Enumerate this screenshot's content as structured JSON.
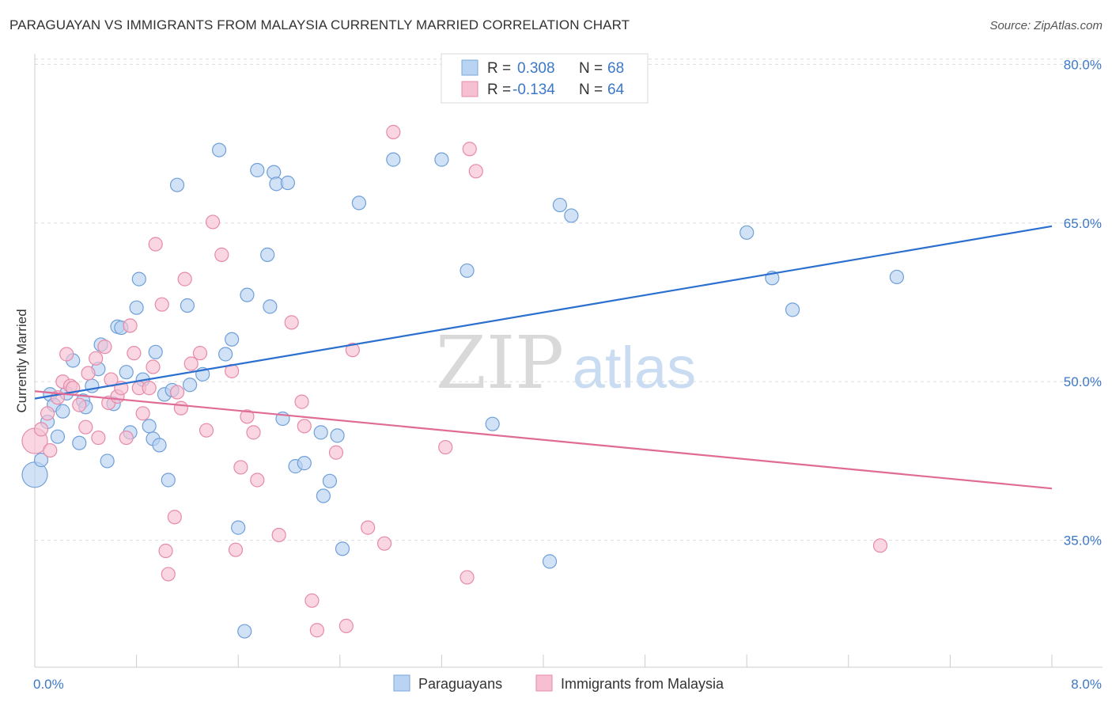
{
  "title": "PARAGUAYAN VS IMMIGRANTS FROM MALAYSIA CURRENTLY MARRIED CORRELATION CHART",
  "source": "Source: ZipAtlas.com",
  "watermark": {
    "zip": "ZIP",
    "atlas": "atlas"
  },
  "colors": {
    "blue": "#3b78c8",
    "blue_fill": "#b9d3f2",
    "blue_line": "#2b6fcf",
    "pink_fill": "#f6c0d2",
    "pink_stroke": "#e68aa9",
    "pink_line": "#e06c96"
  },
  "legend": {
    "rows": [
      {
        "r_label": "R =",
        "r_value": "0.308",
        "n_label": "N =",
        "n_value": "68"
      },
      {
        "r_label": "R =",
        "r_value": "-0.134",
        "n_label": "N =",
        "n_value": "64"
      }
    ]
  },
  "chart_data": {
    "type": "scatter",
    "title": "PARAGUAYAN VS IMMIGRANTS FROM MALAYSIA CURRENTLY MARRIED CORRELATION CHART",
    "xlabel": "",
    "ylabel": "Currently Married",
    "xlim": [
      0,
      8
    ],
    "ylim": [
      23,
      81
    ],
    "x_tick_labels": [
      {
        "value": 0,
        "label": "0.0%"
      },
      {
        "value": 8,
        "label": "8.0%"
      }
    ],
    "y_ticks": [
      {
        "value": 35,
        "label": "35.0%"
      },
      {
        "value": 50,
        "label": "50.0%"
      },
      {
        "value": 65,
        "label": "65.0%"
      },
      {
        "value": 80,
        "label": "80.0%"
      }
    ],
    "grid": true,
    "legend_position": "top-center",
    "series": [
      {
        "name": "Paraguayans",
        "color": "#b9d3f2",
        "trend": {
          "x": [
            0,
            8
          ],
          "y": [
            48.4,
            64.7
          ]
        },
        "points": [
          [
            0.0,
            41.2,
            2
          ],
          [
            0.05,
            42.6,
            1
          ],
          [
            0.1,
            46.2,
            1
          ],
          [
            0.12,
            48.8,
            1
          ],
          [
            0.15,
            47.8,
            1
          ],
          [
            0.18,
            44.8,
            1
          ],
          [
            0.22,
            47.2,
            1
          ],
          [
            0.25,
            48.9,
            1
          ],
          [
            0.3,
            52.0,
            1
          ],
          [
            0.35,
            44.2,
            1
          ],
          [
            0.38,
            48.2,
            1
          ],
          [
            0.4,
            47.6,
            1
          ],
          [
            0.45,
            49.6,
            1
          ],
          [
            0.5,
            51.2,
            1
          ],
          [
            0.52,
            53.5,
            1
          ],
          [
            0.57,
            42.5,
            1
          ],
          [
            0.62,
            47.9,
            1
          ],
          [
            0.65,
            55.2,
            1
          ],
          [
            0.68,
            55.1,
            1
          ],
          [
            0.72,
            50.9,
            1
          ],
          [
            0.75,
            45.2,
            1
          ],
          [
            0.8,
            57.0,
            1
          ],
          [
            0.82,
            59.7,
            1
          ],
          [
            0.85,
            50.2,
            1
          ],
          [
            0.9,
            45.8,
            1
          ],
          [
            0.93,
            44.6,
            1
          ],
          [
            0.95,
            52.8,
            1
          ],
          [
            0.98,
            44.0,
            1
          ],
          [
            1.02,
            48.8,
            1
          ],
          [
            1.05,
            40.7,
            1
          ],
          [
            1.08,
            49.2,
            1
          ],
          [
            1.12,
            68.6,
            1
          ],
          [
            1.2,
            57.2,
            1
          ],
          [
            1.22,
            49.7,
            1
          ],
          [
            1.32,
            50.7,
            1
          ],
          [
            1.45,
            71.9,
            1
          ],
          [
            1.5,
            52.6,
            1
          ],
          [
            1.55,
            54.0,
            1
          ],
          [
            1.6,
            36.2,
            1
          ],
          [
            1.65,
            26.4,
            1
          ],
          [
            1.67,
            58.2,
            1
          ],
          [
            1.75,
            70.0,
            1
          ],
          [
            1.83,
            62.0,
            1
          ],
          [
            1.85,
            57.1,
            1
          ],
          [
            1.88,
            69.8,
            1
          ],
          [
            1.9,
            68.7,
            1
          ],
          [
            1.95,
            46.5,
            1
          ],
          [
            1.99,
            68.8,
            1
          ],
          [
            2.05,
            42.0,
            1
          ],
          [
            2.12,
            42.3,
            1
          ],
          [
            2.25,
            45.2,
            1
          ],
          [
            2.27,
            39.2,
            1
          ],
          [
            2.32,
            40.6,
            1
          ],
          [
            2.38,
            44.9,
            1
          ],
          [
            2.42,
            34.2,
            1
          ],
          [
            2.55,
            66.9,
            1
          ],
          [
            2.82,
            71.0,
            1
          ],
          [
            3.2,
            71.0,
            1
          ],
          [
            3.4,
            60.5,
            1
          ],
          [
            3.6,
            46.0,
            1
          ],
          [
            4.05,
            33.0,
            1
          ],
          [
            4.13,
            66.7,
            1
          ],
          [
            4.22,
            65.7,
            1
          ],
          [
            5.6,
            64.1,
            1
          ],
          [
            5.8,
            59.8,
            1
          ],
          [
            5.96,
            56.8,
            1
          ],
          [
            6.78,
            59.9,
            1
          ]
        ]
      },
      {
        "name": "Immigrants from Malaysia",
        "color": "#f6c0d2",
        "trend": {
          "x": [
            0,
            8
          ],
          "y": [
            49.1,
            39.9
          ]
        },
        "points": [
          [
            0.0,
            44.4,
            2
          ],
          [
            0.05,
            45.5,
            1
          ],
          [
            0.1,
            47.0,
            1
          ],
          [
            0.12,
            43.5,
            1
          ],
          [
            0.18,
            48.5,
            1
          ],
          [
            0.22,
            50.0,
            1
          ],
          [
            0.25,
            52.6,
            1
          ],
          [
            0.28,
            49.6,
            1
          ],
          [
            0.3,
            49.4,
            1
          ],
          [
            0.35,
            47.8,
            1
          ],
          [
            0.4,
            45.7,
            1
          ],
          [
            0.42,
            50.8,
            1
          ],
          [
            0.48,
            52.2,
            1
          ],
          [
            0.5,
            44.7,
            1
          ],
          [
            0.55,
            53.3,
            1
          ],
          [
            0.58,
            48.0,
            1
          ],
          [
            0.6,
            50.2,
            1
          ],
          [
            0.65,
            48.6,
            1
          ],
          [
            0.68,
            49.4,
            1
          ],
          [
            0.72,
            44.7,
            1
          ],
          [
            0.75,
            55.3,
            1
          ],
          [
            0.78,
            52.7,
            1
          ],
          [
            0.82,
            49.4,
            1
          ],
          [
            0.85,
            47.0,
            1
          ],
          [
            0.9,
            49.4,
            1
          ],
          [
            0.93,
            51.4,
            1
          ],
          [
            0.95,
            63.0,
            1
          ],
          [
            1.0,
            57.3,
            1
          ],
          [
            1.03,
            34.0,
            1
          ],
          [
            1.05,
            31.8,
            1
          ],
          [
            1.1,
            37.2,
            1
          ],
          [
            1.12,
            49.0,
            1
          ],
          [
            1.15,
            47.5,
            1
          ],
          [
            1.18,
            59.7,
            1
          ],
          [
            1.23,
            51.7,
            1
          ],
          [
            1.3,
            52.7,
            1
          ],
          [
            1.35,
            45.4,
            1
          ],
          [
            1.4,
            65.1,
            1
          ],
          [
            1.47,
            62.0,
            1
          ],
          [
            1.55,
            51.0,
            1
          ],
          [
            1.58,
            34.1,
            1
          ],
          [
            1.62,
            41.9,
            1
          ],
          [
            1.67,
            46.7,
            1
          ],
          [
            1.72,
            45.2,
            1
          ],
          [
            1.75,
            40.7,
            1
          ],
          [
            1.92,
            35.5,
            1
          ],
          [
            2.02,
            55.6,
            1
          ],
          [
            2.1,
            48.1,
            1
          ],
          [
            2.12,
            45.8,
            1
          ],
          [
            2.18,
            29.3,
            1
          ],
          [
            2.22,
            26.5,
            1
          ],
          [
            2.37,
            43.3,
            1
          ],
          [
            2.45,
            26.9,
            1
          ],
          [
            2.5,
            53.0,
            1
          ],
          [
            2.62,
            36.2,
            1
          ],
          [
            2.75,
            34.7,
            1
          ],
          [
            2.82,
            73.6,
            1
          ],
          [
            3.23,
            43.8,
            1
          ],
          [
            3.4,
            31.5,
            1
          ],
          [
            3.42,
            72.0,
            1
          ],
          [
            3.47,
            69.9,
            1
          ],
          [
            6.65,
            34.5,
            1
          ]
        ]
      }
    ]
  }
}
